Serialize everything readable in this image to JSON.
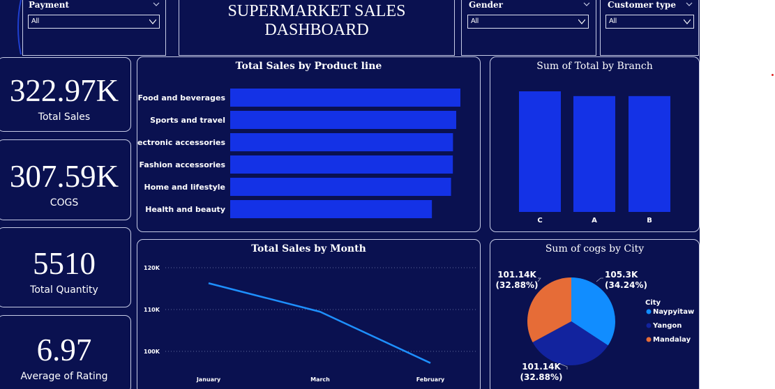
{
  "slicers": {
    "payment": {
      "title": "Payment",
      "value": "All"
    },
    "gender": {
      "title": "Gender",
      "value": "All"
    },
    "customer_type": {
      "title": "Customer type",
      "value": "All"
    }
  },
  "header": {
    "title": "SUPERMARKET SALES DASHBOARD"
  },
  "kpis": {
    "total_sales": {
      "value": "322.97K",
      "label": "Total Sales"
    },
    "cogs": {
      "value": "307.59K",
      "label": "COGS"
    },
    "total_quantity": {
      "value": "5510",
      "label": "Total Quantity"
    },
    "avg_rating": {
      "value": "6.97",
      "label": "Average of Rating"
    }
  },
  "colors": {
    "background": "#0a1150",
    "bar": "#1432e6",
    "line": "#1e90ff",
    "naypyitaw": "#118dff",
    "yangon": "#12239e",
    "mandalay": "#e66c37"
  },
  "chart_data": [
    {
      "type": "bar",
      "orientation": "horizontal",
      "title": "Total Sales by Product line",
      "categories": [
        "Food and beverages",
        "Sports and travel",
        "Electronic accessories",
        "Fashion accessories",
        "Home and lifestyle",
        "Health and beauty"
      ],
      "values": [
        56144,
        55123,
        54338,
        54306,
        53862,
        49194
      ],
      "xlim": [
        0,
        56144
      ]
    },
    {
      "type": "bar",
      "title": "Sum of Total by Branch",
      "categories": [
        "C",
        "A",
        "B"
      ],
      "values": [
        110568,
        106200,
        106198
      ],
      "ylim": [
        0,
        110568
      ]
    },
    {
      "type": "line",
      "title": "Total Sales by Month",
      "x": [
        "January",
        "March",
        "February"
      ],
      "y": [
        116292,
        109456,
        97219
      ],
      "yticks": [
        {
          "value": 100000,
          "label": "100K"
        },
        {
          "value": 110000,
          "label": "110K"
        },
        {
          "value": 120000,
          "label": "120K"
        }
      ],
      "ylim": [
        95000,
        121000
      ],
      "grid": true
    },
    {
      "type": "pie",
      "title": "Sum of cogs by City",
      "legend_title": "City",
      "legend_position": "right",
      "slices": [
        {
          "name": "Naypyitaw",
          "value": 105.3,
          "value_label": "105.3K",
          "pct_label": "(34.24%)",
          "color": "#118dff"
        },
        {
          "name": "Yangon",
          "value": 101.14,
          "value_label": "101.14K",
          "pct_label": "(32.88%)",
          "color": "#12239e"
        },
        {
          "name": "Mandalay",
          "value": 101.14,
          "value_label": "101.14K",
          "pct_label": "(32.88%)",
          "color": "#e66c37"
        }
      ]
    }
  ]
}
